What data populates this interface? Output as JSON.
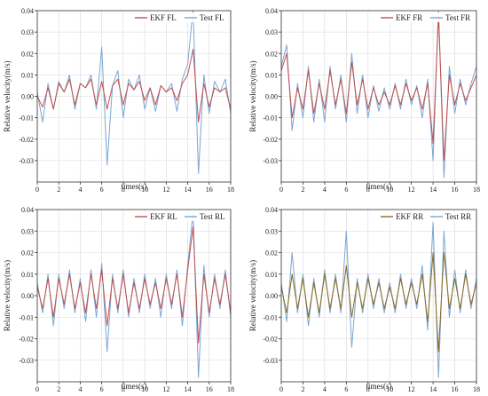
{
  "colors": {
    "ekf": "#c0504d",
    "test": "#7aa6d6",
    "ekf_rr": "#8b6b1f",
    "grid": "#d9d9d9",
    "axis": "#333333"
  },
  "chart_data": [
    {
      "type": "line",
      "id": "fl",
      "xlabel": "times(s)",
      "ylabel": "Relative velocity(m/s)",
      "xlim": [
        0,
        18
      ],
      "ylim": [
        -0.04,
        0.04
      ],
      "xticks": [
        0,
        2,
        4,
        6,
        8,
        10,
        12,
        14,
        16,
        18
      ],
      "xtick_labels": [
        "0",
        "2",
        "4",
        "6",
        "8",
        "10",
        "12",
        "14",
        "16",
        "18"
      ],
      "yticks": [
        -0.03,
        -0.02,
        -0.01,
        0,
        0.01,
        0.02,
        0.03,
        0.04
      ],
      "ytick_labels": [
        "-0.03",
        "-0.02",
        "-0.01",
        "0.00",
        "0.01",
        "0.02",
        "0.03",
        "0.04"
      ],
      "grid": true,
      "legend": "top-right",
      "series": [
        {
          "name": "EKF FL",
          "color": "#c0504d",
          "x": [
            0,
            0.5,
            1,
            1.5,
            2,
            2.5,
            3,
            3.5,
            4,
            4.5,
            5,
            5.5,
            6,
            6.5,
            7,
            7.5,
            8,
            8.5,
            9,
            9.5,
            10,
            10.5,
            11,
            11.5,
            12,
            12.5,
            13,
            13.5,
            14,
            14.5,
            15,
            15.5,
            16,
            16.5,
            17,
            17.5,
            18
          ],
          "y": [
            0,
            -0.005,
            0.004,
            -0.006,
            0.006,
            0.002,
            0.008,
            -0.004,
            0.006,
            0.004,
            0.008,
            -0.004,
            0.007,
            -0.006,
            0.005,
            0.008,
            -0.004,
            0.006,
            0.003,
            0.007,
            -0.002,
            0.004,
            -0.004,
            0.005,
            0.002,
            0.004,
            -0.002,
            0.006,
            0.01,
            0.022,
            -0.012,
            0.006,
            -0.005,
            0.004,
            0.002,
            0.004,
            -0.006
          ]
        },
        {
          "name": "Test FL",
          "color": "#7aa6d6",
          "x": [
            0,
            0.5,
            1,
            1.5,
            2,
            2.5,
            3,
            3.5,
            4,
            4.5,
            5,
            5.5,
            6,
            6.5,
            7,
            7.5,
            8,
            8.5,
            9,
            9.5,
            10,
            10.5,
            11,
            11.5,
            12,
            12.5,
            13,
            13.5,
            14,
            14.5,
            15,
            15.5,
            16,
            16.5,
            17,
            17.5,
            18
          ],
          "y": [
            0.002,
            -0.012,
            0.006,
            -0.006,
            0.007,
            0.002,
            0.01,
            -0.006,
            0.006,
            0.004,
            0.01,
            -0.006,
            0.023,
            -0.032,
            0.005,
            0.012,
            -0.01,
            0.008,
            0.003,
            0.01,
            -0.006,
            0.004,
            -0.007,
            0.005,
            0.002,
            0.006,
            -0.007,
            0.008,
            0.015,
            0.041,
            -0.036,
            0.01,
            -0.008,
            0.007,
            0.002,
            0.008,
            -0.008
          ]
        }
      ]
    },
    {
      "type": "line",
      "id": "fr",
      "xlabel": "times(s)",
      "ylabel": "Relative velocity(m/s)",
      "xlim": [
        0,
        18
      ],
      "ylim": [
        -0.04,
        0.04
      ],
      "xticks": [
        0,
        2,
        4,
        6,
        8,
        10,
        12,
        14,
        16,
        18
      ],
      "xtick_labels": [
        "0",
        "2",
        "4",
        "6",
        "8",
        "10",
        "12",
        "14",
        "16",
        "18"
      ],
      "yticks": [
        -0.03,
        -0.02,
        -0.01,
        0,
        0.01,
        0.02,
        0.03,
        0.04
      ],
      "ytick_labels": [
        "-0.03",
        "-0.02",
        "-0.01",
        "0.00",
        "0.01",
        "0.02",
        "0.03",
        "0.04"
      ],
      "grid": true,
      "legend": "top-right",
      "series": [
        {
          "name": "EKF FR",
          "color": "#c0504d",
          "x": [
            0,
            0.5,
            1,
            1.5,
            2,
            2.5,
            3,
            3.5,
            4,
            4.5,
            5,
            5.5,
            6,
            6.5,
            7,
            7.5,
            8,
            8.5,
            9,
            9.5,
            10,
            10.5,
            11,
            11.5,
            12,
            12.5,
            13,
            13.5,
            14,
            14.5,
            15,
            15.5,
            16,
            16.5,
            17,
            17.5,
            18
          ],
          "y": [
            0.012,
            0.02,
            -0.01,
            0.004,
            -0.006,
            0.012,
            -0.008,
            0.006,
            -0.006,
            0.012,
            -0.004,
            0.008,
            -0.008,
            0.016,
            -0.004,
            0.008,
            -0.006,
            0.004,
            -0.004,
            0.002,
            -0.004,
            0.005,
            -0.004,
            0.006,
            -0.002,
            0.004,
            -0.006,
            0.006,
            -0.022,
            0.038,
            -0.03,
            0.01,
            -0.004,
            0.006,
            -0.002,
            0.004,
            0.01
          ]
        },
        {
          "name": "Test FR",
          "color": "#7aa6d6",
          "x": [
            0,
            0.5,
            1,
            1.5,
            2,
            2.5,
            3,
            3.5,
            4,
            4.5,
            5,
            5.5,
            6,
            6.5,
            7,
            7.5,
            8,
            8.5,
            9,
            9.5,
            10,
            10.5,
            11,
            11.5,
            12,
            12.5,
            13,
            13.5,
            14,
            14.5,
            15,
            15.5,
            16,
            16.5,
            17,
            17.5,
            18
          ],
          "y": [
            0.014,
            0.024,
            -0.016,
            0.006,
            -0.01,
            0.014,
            -0.012,
            0.008,
            -0.012,
            0.014,
            -0.006,
            0.01,
            -0.012,
            0.02,
            -0.008,
            0.01,
            -0.01,
            0.005,
            -0.007,
            0.004,
            -0.006,
            0.006,
            -0.006,
            0.008,
            -0.004,
            0.005,
            -0.01,
            0.008,
            -0.03,
            0.041,
            -0.038,
            0.014,
            -0.008,
            0.008,
            -0.004,
            0.006,
            0.014
          ]
        }
      ]
    },
    {
      "type": "line",
      "id": "rl",
      "xlabel": "times(s)",
      "ylabel": "Relative velocity(m/s)",
      "xlim": [
        0,
        18
      ],
      "ylim": [
        -0.04,
        0.04
      ],
      "xticks": [
        0,
        2,
        4,
        6,
        8,
        10,
        12,
        14,
        16,
        18
      ],
      "xtick_labels": [
        "0",
        "2",
        "4",
        "6",
        "8",
        "10",
        "12",
        "14",
        "16",
        "18"
      ],
      "yticks": [
        -0.03,
        -0.02,
        -0.01,
        0,
        0.01,
        0.02,
        0.03,
        0.04
      ],
      "ytick_labels": [
        "-0.03",
        "-0.02",
        "-0.01",
        "0.00",
        "0.01",
        "0.02",
        "0.03",
        "0.04"
      ],
      "grid": true,
      "legend": "top-right",
      "series": [
        {
          "name": "EKF RL",
          "color": "#c0504d",
          "x": [
            0,
            0.5,
            1,
            1.5,
            2,
            2.5,
            3,
            3.5,
            4,
            4.5,
            5,
            5.5,
            6,
            6.5,
            7,
            7.5,
            8,
            8.5,
            9,
            9.5,
            10,
            10.5,
            11,
            11.5,
            12,
            12.5,
            13,
            13.5,
            14,
            14.5,
            15,
            15.5,
            16,
            16.5,
            17,
            17.5,
            18
          ],
          "y": [
            0.004,
            -0.006,
            0.008,
            -0.01,
            0.008,
            -0.004,
            0.01,
            -0.006,
            0.006,
            -0.008,
            0.01,
            -0.006,
            0.012,
            -0.014,
            0.008,
            -0.006,
            0.01,
            -0.008,
            0.006,
            -0.006,
            0.008,
            -0.004,
            0.006,
            -0.006,
            0.008,
            -0.004,
            0.01,
            -0.01,
            0.012,
            0.032,
            -0.022,
            0.01,
            -0.008,
            0.008,
            -0.004,
            0.01,
            -0.008
          ]
        },
        {
          "name": "Test RL",
          "color": "#7aa6d6",
          "x": [
            0,
            0.5,
            1,
            1.5,
            2,
            2.5,
            3,
            3.5,
            4,
            4.5,
            5,
            5.5,
            6,
            6.5,
            7,
            7.5,
            8,
            8.5,
            9,
            9.5,
            10,
            10.5,
            11,
            11.5,
            12,
            12.5,
            13,
            13.5,
            14,
            14.5,
            15,
            15.5,
            16,
            16.5,
            17,
            17.5,
            18
          ],
          "y": [
            0.006,
            -0.008,
            0.01,
            -0.014,
            0.01,
            -0.006,
            0.012,
            -0.008,
            0.008,
            -0.012,
            0.012,
            -0.01,
            0.015,
            -0.026,
            0.01,
            -0.008,
            0.012,
            -0.01,
            0.008,
            -0.008,
            0.01,
            -0.006,
            0.008,
            -0.01,
            0.01,
            -0.006,
            0.012,
            -0.014,
            0.014,
            0.039,
            -0.038,
            0.014,
            -0.01,
            0.01,
            -0.006,
            0.012,
            -0.01
          ]
        }
      ]
    },
    {
      "type": "line",
      "id": "rr",
      "xlabel": "times(s)",
      "ylabel": "Relative velocity(m/s)",
      "xlim": [
        0,
        18
      ],
      "ylim": [
        -0.04,
        0.04
      ],
      "xticks": [
        0,
        2,
        4,
        6,
        8,
        10,
        12,
        14,
        16,
        18
      ],
      "xtick_labels": [
        "0",
        "2",
        "4",
        "6",
        "8",
        "10",
        "12",
        "14",
        "16",
        "18"
      ],
      "yticks": [
        -0.03,
        -0.02,
        -0.01,
        0,
        0.01,
        0.02,
        0.03,
        0.04
      ],
      "ytick_labels": [
        "-0.03",
        "-0.02",
        "-0.01",
        "0.00",
        "0.01",
        "0.02",
        "0.03",
        "0.04"
      ],
      "grid": true,
      "legend": "top-right",
      "series": [
        {
          "name": "EKF RR",
          "color": "#8b6b1f",
          "x": [
            0,
            0.5,
            1,
            1.5,
            2,
            2.5,
            3,
            3.5,
            4,
            4.5,
            5,
            5.5,
            6,
            6.5,
            7,
            7.5,
            8,
            8.5,
            9,
            9.5,
            10,
            10.5,
            11,
            11.5,
            12,
            12.5,
            13,
            13.5,
            14,
            14.5,
            15,
            15.5,
            16,
            16.5,
            17,
            17.5,
            18
          ],
          "y": [
            0.004,
            -0.008,
            0.01,
            -0.006,
            0.008,
            -0.01,
            0.006,
            -0.008,
            0.01,
            -0.006,
            0.008,
            -0.006,
            0.014,
            -0.01,
            0.006,
            -0.006,
            0.008,
            -0.004,
            0.006,
            -0.006,
            0.004,
            -0.006,
            0.008,
            -0.004,
            0.006,
            -0.004,
            0.01,
            -0.012,
            0.02,
            -0.026,
            0.02,
            -0.006,
            0.008,
            -0.006,
            0.01,
            -0.004,
            0.006
          ]
        },
        {
          "name": "Test RR",
          "color": "#7aa6d6",
          "x": [
            0,
            0.5,
            1,
            1.5,
            2,
            2.5,
            3,
            3.5,
            4,
            4.5,
            5,
            5.5,
            6,
            6.5,
            7,
            7.5,
            8,
            8.5,
            9,
            9.5,
            10,
            10.5,
            11,
            11.5,
            12,
            12.5,
            13,
            13.5,
            14,
            14.5,
            15,
            15.5,
            16,
            16.5,
            17,
            17.5,
            18
          ],
          "y": [
            0.006,
            -0.012,
            0.02,
            -0.008,
            0.01,
            -0.014,
            0.008,
            -0.01,
            0.012,
            -0.008,
            0.01,
            -0.008,
            0.03,
            -0.024,
            0.008,
            -0.008,
            0.01,
            -0.006,
            0.008,
            -0.008,
            0.006,
            -0.008,
            0.01,
            -0.006,
            0.008,
            -0.006,
            0.014,
            -0.016,
            0.034,
            -0.038,
            0.03,
            -0.01,
            0.012,
            -0.008,
            0.012,
            -0.006,
            0.008
          ]
        }
      ]
    }
  ]
}
